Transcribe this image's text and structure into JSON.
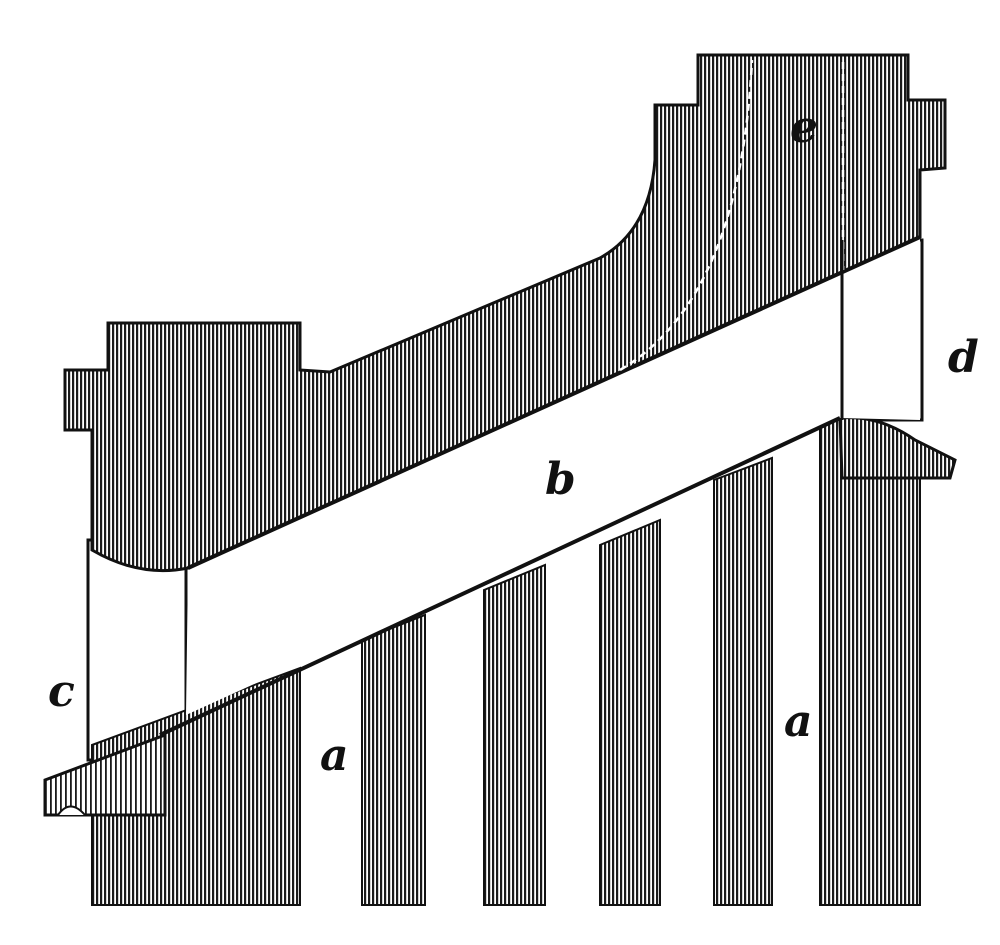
{
  "figure": {
    "labels": {
      "a_left": "a",
      "a_right": "a",
      "b": "b",
      "c": "c",
      "d": "d",
      "e": "e"
    },
    "colors": {
      "ink": "#111111",
      "hatch": "#1a1a1a",
      "paper": "#ffffff"
    }
  }
}
